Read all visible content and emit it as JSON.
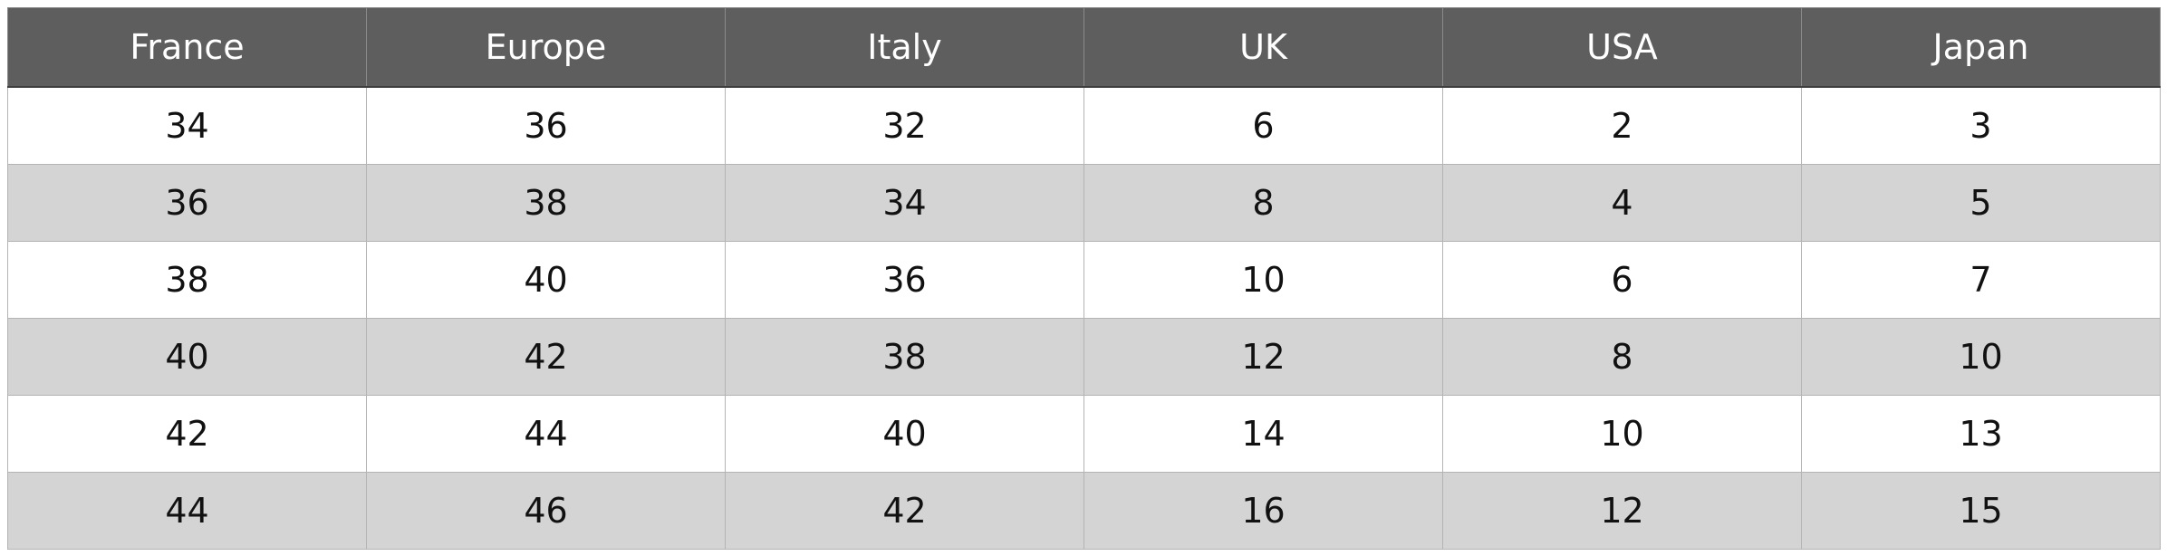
{
  "table": {
    "header": [
      "France",
      "Europe",
      "Italy",
      "UK",
      "USA",
      "Japan"
    ],
    "rows": [
      [
        34,
        36,
        32,
        6,
        2,
        3
      ],
      [
        36,
        38,
        34,
        8,
        4,
        5
      ],
      [
        38,
        40,
        36,
        10,
        6,
        7
      ],
      [
        40,
        42,
        38,
        12,
        8,
        10
      ],
      [
        42,
        44,
        40,
        14,
        10,
        13
      ],
      [
        44,
        46,
        42,
        16,
        12,
        15
      ]
    ]
  }
}
